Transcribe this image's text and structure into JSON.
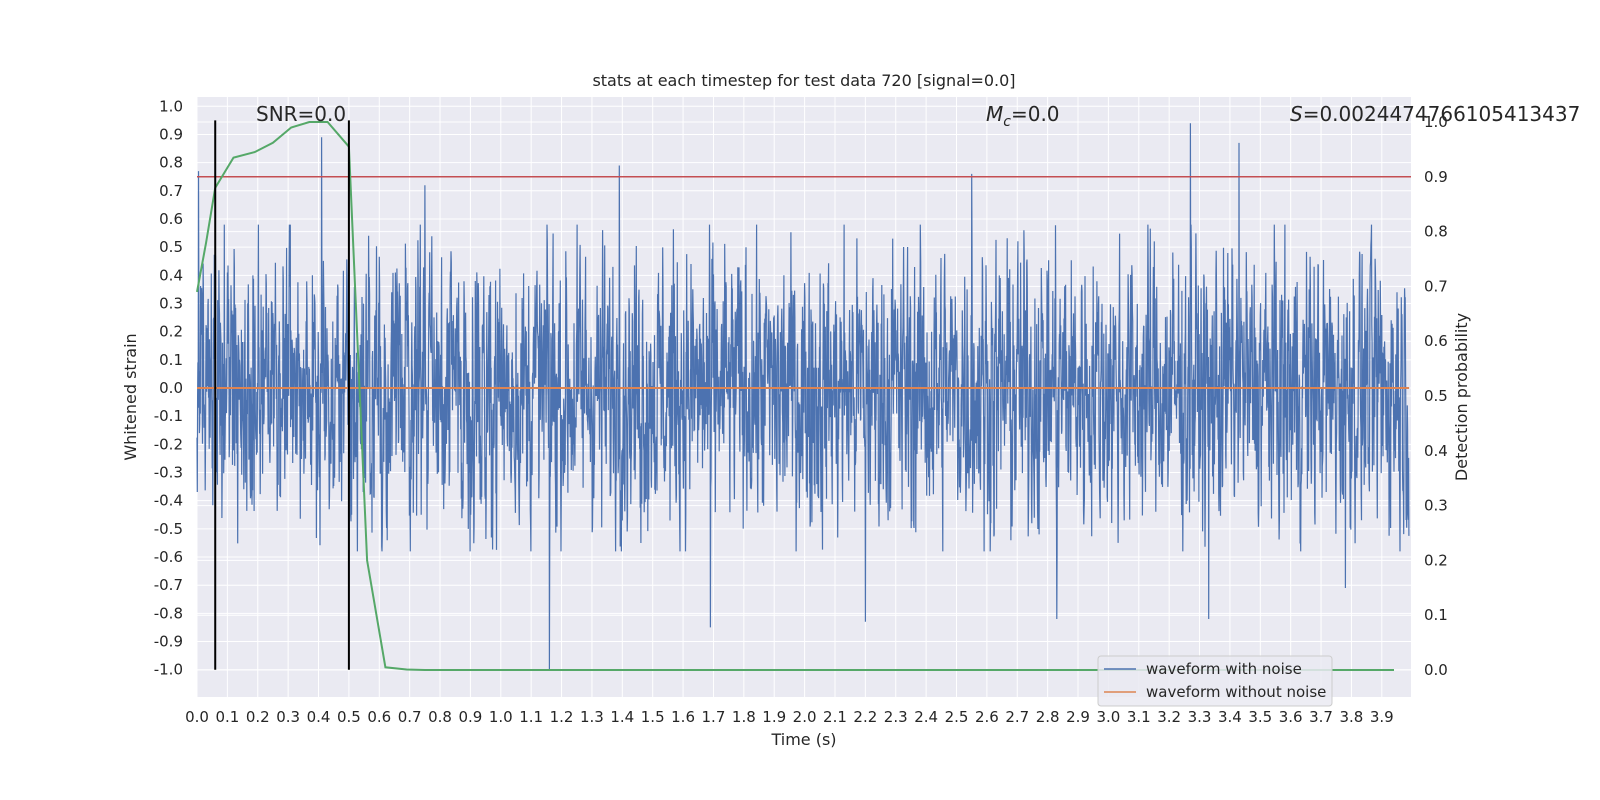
{
  "chart_data": {
    "type": "line",
    "title": "stats at each timestep for test data 720 [signal=0.0]",
    "xlabel": "Time (s)",
    "ylabel": "Whitened strain",
    "y2label": "Detection probability",
    "xlim": [
      0.0,
      3.99
    ],
    "ylim": [
      -1.1,
      1.05
    ],
    "y2lim": [
      -0.05,
      1.0
    ],
    "x_ticks": [
      "0.0",
      "0.1",
      "0.2",
      "0.3",
      "0.4",
      "0.5",
      "0.6",
      "0.7",
      "0.8",
      "0.9",
      "1.0",
      "1.1",
      "1.2",
      "1.3",
      "1.4",
      "1.5",
      "1.6",
      "1.7",
      "1.8",
      "1.9",
      "2.0",
      "2.1",
      "2.2",
      "2.3",
      "2.4",
      "2.5",
      "2.6",
      "2.7",
      "2.8",
      "2.9",
      "3.0",
      "3.1",
      "3.2",
      "3.3",
      "3.4",
      "3.5",
      "3.6",
      "3.7",
      "3.8",
      "3.9"
    ],
    "y_ticks": [
      "1.0",
      "0.9",
      "0.8",
      "0.7",
      "0.6",
      "0.5",
      "0.4",
      "0.3",
      "0.2",
      "0.1",
      "0.0",
      "-0.1",
      "-0.2",
      "-0.3",
      "-0.4",
      "-0.5",
      "-0.6",
      "-0.7",
      "-0.8",
      "-0.9",
      "-1.0"
    ],
    "y2_ticks": [
      "1.0",
      "0.9",
      "0.8",
      "0.7",
      "0.6",
      "0.5",
      "0.4",
      "0.3",
      "0.2",
      "0.1",
      "0.0"
    ],
    "grid": true,
    "legend_position": "lower-right",
    "annotations": {
      "snr": "SNR=0.0",
      "mc_symbol": "M",
      "mc_sub": "c",
      "mc_value": "=0.0",
      "s_symbol": "S",
      "s_value": "=0.0024474766105413437"
    },
    "series": [
      {
        "name": "waveform with noise",
        "color": "#4c72b0",
        "axis": "left",
        "kind": "noise",
        "sample_rate": 1000,
        "n_samples": 3990,
        "envelope": [
          -0.5,
          0.5
        ],
        "peaks": [
          {
            "x": 0.005,
            "y": 0.77
          },
          {
            "x": 0.09,
            "y": 0.58
          },
          {
            "x": 0.41,
            "y": 0.89
          },
          {
            "x": 1.39,
            "y": 0.79
          },
          {
            "x": 3.27,
            "y": 0.94
          },
          {
            "x": 3.43,
            "y": 0.87
          },
          {
            "x": 2.55,
            "y": 0.76
          },
          {
            "x": 0.75,
            "y": 0.72
          },
          {
            "x": 1.16,
            "y": -1.0
          },
          {
            "x": 1.69,
            "y": -0.85
          },
          {
            "x": 2.2,
            "y": -0.83
          },
          {
            "x": 2.83,
            "y": -0.82
          },
          {
            "x": 3.33,
            "y": -0.82
          },
          {
            "x": 0.5,
            "y": -0.74
          },
          {
            "x": 3.78,
            "y": -0.71
          }
        ]
      },
      {
        "name": "waveform without noise",
        "color": "#dd8452",
        "axis": "left",
        "x": [
          0.0,
          3.99
        ],
        "y": [
          0.0,
          0.0
        ]
      },
      {
        "name": "",
        "color": "#55a868",
        "axis": "right",
        "x": [
          0.0,
          0.03,
          0.06,
          0.12,
          0.19,
          0.25,
          0.31,
          0.37,
          0.43,
          0.5,
          0.56,
          0.62,
          0.69,
          0.75,
          1.0,
          2.0,
          3.0,
          3.94
        ],
        "y": [
          0.69,
          0.78,
          0.88,
          0.935,
          0.945,
          0.962,
          0.99,
          1.0,
          1.0,
          0.955,
          0.2,
          0.005,
          0.001,
          0.0,
          0.0,
          0.0,
          0.0,
          0.0
        ]
      }
    ],
    "threshold": {
      "color": "#c44e52",
      "axis": "right",
      "y": 0.9
    },
    "vlines": [
      {
        "x": 0.06,
        "ymin": -1.0,
        "ymax": 0.95,
        "color": "#000000"
      },
      {
        "x": 0.5,
        "ymin": -1.0,
        "ymax": 0.95,
        "color": "#000000"
      }
    ]
  }
}
